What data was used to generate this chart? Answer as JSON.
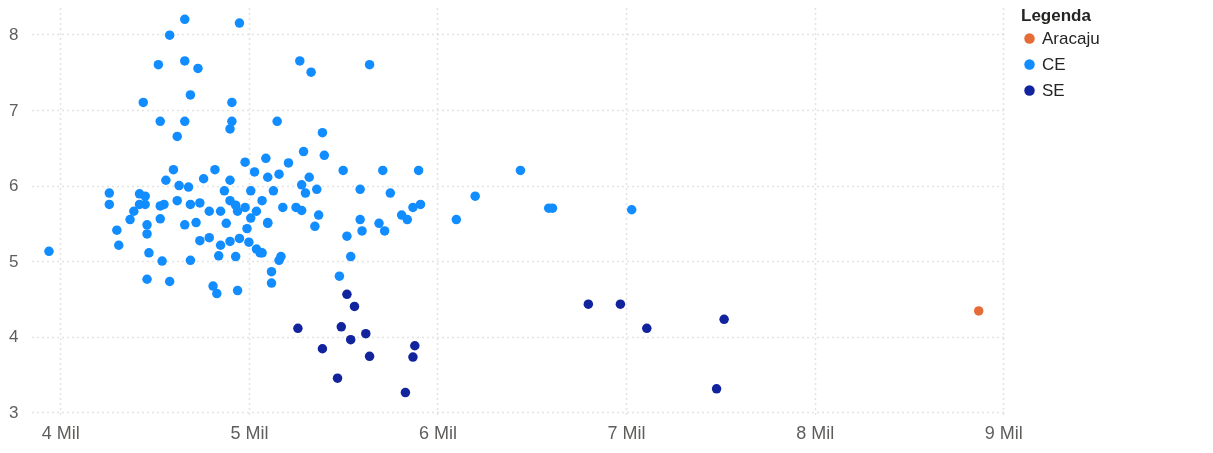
{
  "chart_data": {
    "type": "scatter",
    "legend_title": "Legenda",
    "legend": "top right",
    "grid": true,
    "marker": "circle",
    "xlim": [
      3.85,
      9.02
    ],
    "ylim": [
      2.95,
      8.35
    ],
    "xticks": [
      {
        "value": 4,
        "label": "4 Mil"
      },
      {
        "value": 5,
        "label": "5 Mil"
      },
      {
        "value": 6,
        "label": "6 Mil"
      },
      {
        "value": 7,
        "label": "7 Mil"
      },
      {
        "value": 8,
        "label": "8 Mil"
      },
      {
        "value": 9,
        "label": "9 Mil"
      }
    ],
    "yticks": [
      3,
      4,
      5,
      6,
      7,
      8
    ],
    "series": [
      {
        "name": "Aracaju",
        "color": "#e66c37",
        "x": [
          8.87
        ],
        "values": [
          4.34
        ]
      },
      {
        "name": "CE",
        "color": "#118dff",
        "x": [
          6.44,
          6.59,
          6.61,
          7.03,
          4.66,
          4.95,
          4.58,
          4.52,
          4.66,
          4.73,
          4.69,
          4.44,
          4.91,
          4.53,
          4.66,
          4.91,
          4.9,
          4.62,
          5.27,
          5.33,
          5.64,
          5.15,
          5.39,
          5.29,
          5.4,
          5.09,
          5.21,
          5.5,
          5.71,
          5.9,
          6.2,
          5.59,
          5.75,
          5.16,
          5.1,
          5.32,
          5.13,
          5.28,
          5.3,
          5.36,
          5.18,
          5.25,
          5.28,
          5.37,
          5.35,
          5.1,
          5.59,
          5.6,
          5.69,
          5.72,
          5.81,
          5.84,
          5.87,
          5.91,
          6.1,
          5.52,
          5.54,
          5.48,
          5.07,
          5.17,
          5.16,
          5.12,
          5.12,
          3.94,
          4.26,
          4.26,
          4.3,
          4.31,
          4.37,
          4.39,
          4.42,
          4.45,
          4.46,
          4.46,
          4.47,
          4.46,
          4.54,
          4.58,
          4.53,
          4.55,
          4.62,
          4.66,
          4.69,
          4.69,
          4.72,
          4.74,
          4.79,
          4.81,
          4.83,
          4.84,
          4.85,
          4.88,
          4.93,
          4.94,
          4.9,
          4.95,
          4.99,
          5.0,
          5.04,
          5.06,
          4.79,
          4.85,
          4.9,
          4.94,
          4.98,
          5.01,
          5.04,
          5.1,
          4.42,
          4.6,
          4.63,
          4.76,
          4.82,
          4.9,
          4.87,
          4.74,
          4.53,
          4.45,
          4.98,
          5.03,
          5.01,
          4.68,
          4.56,
          4.93,
          5.07
        ],
        "values": [
          6.2,
          5.7,
          5.7,
          5.68,
          8.2,
          8.15,
          7.99,
          7.6,
          7.65,
          7.55,
          7.2,
          7.1,
          7.1,
          6.85,
          6.85,
          6.85,
          6.75,
          6.65,
          7.65,
          7.5,
          7.6,
          6.85,
          6.7,
          6.45,
          6.4,
          6.36,
          6.3,
          6.2,
          6.2,
          6.2,
          5.86,
          5.95,
          5.9,
          6.15,
          6.11,
          6.11,
          5.93,
          6.01,
          5.9,
          5.95,
          5.71,
          5.71,
          5.67,
          5.61,
          5.46,
          5.5,
          5.55,
          5.4,
          5.5,
          5.4,
          5.61,
          5.55,
          5.71,
          5.75,
          5.55,
          5.33,
          5.06,
          4.8,
          5.11,
          5.06,
          5.01,
          4.86,
          4.71,
          5.13,
          5.9,
          5.75,
          5.41,
          5.21,
          5.55,
          5.66,
          5.89,
          5.75,
          5.48,
          5.36,
          5.11,
          4.76,
          5.0,
          4.73,
          5.56,
          5.75,
          5.8,
          5.48,
          5.01,
          5.75,
          5.51,
          5.27,
          5.31,
          4.67,
          4.57,
          5.07,
          5.21,
          5.5,
          5.06,
          4.61,
          5.26,
          5.3,
          5.43,
          5.25,
          5.16,
          5.11,
          5.66,
          5.66,
          5.8,
          5.66,
          5.71,
          5.57,
          5.66,
          5.51,
          5.75,
          6.21,
          6.0,
          6.09,
          6.21,
          6.07,
          5.93,
          5.77,
          5.73,
          5.86,
          6.31,
          6.18,
          5.93,
          5.98,
          6.07,
          5.74,
          5.8
        ]
      },
      {
        "name": "SE",
        "color": "#12239e",
        "x": [
          5.52,
          5.56,
          5.26,
          5.49,
          5.54,
          5.62,
          5.39,
          5.64,
          5.88,
          5.87,
          5.47,
          5.83,
          6.8,
          6.97,
          7.11,
          7.52,
          7.48
        ],
        "values": [
          4.56,
          4.4,
          4.11,
          4.13,
          3.96,
          4.04,
          3.84,
          3.74,
          3.88,
          3.73,
          3.45,
          3.26,
          4.43,
          4.43,
          4.11,
          4.23,
          3.31
        ]
      }
    ]
  }
}
